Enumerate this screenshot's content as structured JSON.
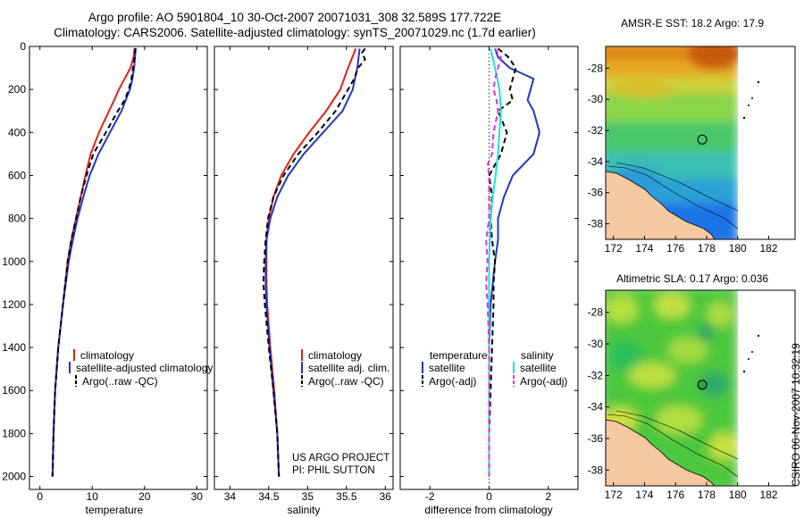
{
  "header": {
    "line1": "Argo profile: AO 5901804_10 30-Oct-2007 20071031_308 32.589S 177.722E",
    "line2": "Climatology: CARS2006. Satellite-adjusted climatology: synTS_20071029.nc (1.7d earlier)"
  },
  "colors": {
    "climatology": "#e0201a",
    "satellite": "#1f36c8",
    "argo": "#000000",
    "sal_satellite": "#22dede",
    "sal_argo": "#e030d0"
  },
  "depth_axis": {
    "ticks": [
      "0",
      "200",
      "400",
      "600",
      "800",
      "1000",
      "1200",
      "1400",
      "1600",
      "1800",
      "2000"
    ]
  },
  "chart_data": [
    {
      "type": "line",
      "xlabel": "temperature",
      "xlim": [
        -2,
        32
      ],
      "ylim": [
        2060,
        0
      ],
      "xticks": [
        "0",
        "10",
        "20",
        "30"
      ],
      "legend": {
        "placement": "lower-center",
        "entries": [
          "climatology",
          "satellite-adjusted climatology",
          "Argo(..raw -QC)"
        ]
      },
      "series": [
        {
          "name": "climatology",
          "color": "#e0201a",
          "dash": "",
          "depth": [
            8,
            50,
            100,
            150,
            200,
            250,
            300,
            400,
            500,
            600,
            700,
            800,
            900,
            1000,
            1200,
            1400,
            1600,
            1800,
            2000
          ],
          "values": [
            18.1,
            17.9,
            17.3,
            16.2,
            15.1,
            14.2,
            13.2,
            11.3,
            9.7,
            8.7,
            7.8,
            6.9,
            6.0,
            5.3,
            4.4,
            3.5,
            2.9,
            2.6,
            2.4
          ]
        },
        {
          "name": "satellite-adjusted climatology",
          "color": "#1f36c8",
          "dash": "",
          "depth": [
            8,
            50,
            100,
            150,
            200,
            250,
            300,
            400,
            500,
            600,
            700,
            800,
            900,
            1000,
            1200,
            1400,
            1600,
            1800,
            2000
          ],
          "values": [
            18.3,
            18.2,
            18.0,
            17.7,
            17.2,
            16.4,
            15.6,
            13.4,
            11.2,
            9.5,
            8.3,
            7.2,
            6.3,
            5.5,
            4.4,
            3.5,
            2.9,
            2.6,
            2.4
          ]
        },
        {
          "name": "Argo(..raw -QC)",
          "color": "#000000",
          "dash": "6,4",
          "depth": [
            8,
            50,
            100,
            150,
            200,
            250,
            300,
            400,
            500,
            600,
            700,
            800,
            900,
            1000,
            1200,
            1400,
            1600,
            1800,
            2000
          ],
          "values": [
            18.3,
            18.1,
            17.8,
            17.5,
            17.0,
            16.2,
            14.9,
            12.6,
            10.2,
            8.9,
            7.8,
            6.9,
            6.0,
            5.3,
            4.4,
            3.5,
            2.9,
            2.6,
            2.4
          ]
        }
      ]
    },
    {
      "type": "line",
      "xlabel": "salinity",
      "xlim": [
        33.8,
        36.1
      ],
      "ylim": [
        2060,
        0
      ],
      "xticks": [
        "34",
        "34.5",
        "35",
        "35.5",
        "36"
      ],
      "legend": {
        "placement": "lower-center",
        "entries": [
          "climatology",
          "satellite adj. clim.",
          "Argo(..raw -QC)"
        ]
      },
      "annotation": [
        "US ARGO PROJECT",
        "PI: PHIL SUTTON"
      ],
      "series": [
        {
          "name": "climatology",
          "color": "#e0201a",
          "dash": "",
          "depth": [
            10,
            100,
            200,
            300,
            400,
            500,
            600,
            700,
            800,
            900,
            1000,
            1100,
            1200,
            1400,
            1600,
            1800,
            2000
          ],
          "values": [
            35.62,
            35.52,
            35.42,
            35.24,
            35.02,
            34.82,
            34.66,
            34.56,
            34.5,
            34.47,
            34.47,
            34.47,
            34.48,
            34.52,
            34.57,
            34.61,
            34.63
          ]
        },
        {
          "name": "satellite adj. clim.",
          "color": "#1f36c8",
          "dash": "",
          "depth": [
            10,
            100,
            200,
            300,
            400,
            500,
            600,
            700,
            800,
            900,
            1000,
            1100,
            1200,
            1400,
            1600,
            1800,
            2000
          ],
          "values": [
            35.67,
            35.64,
            35.58,
            35.45,
            35.2,
            34.95,
            34.75,
            34.61,
            34.52,
            34.47,
            34.46,
            34.46,
            34.47,
            34.51,
            34.56,
            34.61,
            34.63
          ]
        },
        {
          "name": "Argo(..raw -QC)",
          "color": "#000000",
          "dash": "6,4",
          "depth": [
            10,
            30,
            60,
            100,
            150,
            200,
            300,
            400,
            500,
            600,
            700,
            800,
            900,
            1000,
            1100,
            1200,
            1400,
            1600,
            1800,
            2000
          ],
          "values": [
            35.74,
            35.7,
            35.74,
            35.65,
            35.6,
            35.52,
            35.36,
            35.13,
            34.88,
            34.69,
            34.56,
            34.49,
            34.46,
            34.44,
            34.43,
            34.45,
            34.5,
            34.56,
            34.61,
            34.63
          ]
        }
      ]
    },
    {
      "type": "line",
      "xlabel": "difference from climatology",
      "xlim": [
        -3,
        3
      ],
      "ylim": [
        2060,
        0
      ],
      "xticks": [
        "-2",
        "0",
        "2"
      ],
      "legend": {
        "placement": "lower-center",
        "temperature_title": "temperature",
        "salinity_title": "salinity",
        "entries": [
          "satellite",
          "Argo(-adj)",
          "satellite",
          "Argo(-adj)"
        ]
      },
      "series": [
        {
          "name": "temperature satellite",
          "color": "#1f36c8",
          "dash": "",
          "depth": [
            10,
            50,
            100,
            150,
            200,
            250,
            300,
            400,
            500,
            600,
            700,
            800,
            900,
            1000,
            1200,
            1400,
            1600,
            1800,
            2000
          ],
          "values": [
            0.2,
            0.3,
            0.7,
            1.5,
            1.4,
            1.3,
            1.5,
            1.7,
            1.5,
            0.8,
            0.5,
            0.3,
            0.3,
            0.2,
            0.05,
            0.0,
            0.0,
            0.0,
            0.0
          ]
        },
        {
          "name": "temperature Argo(-adj)",
          "color": "#000000",
          "dash": "6,4",
          "depth": [
            10,
            50,
            100,
            150,
            200,
            250,
            300,
            400,
            500,
            600,
            700,
            800,
            900,
            1000,
            1100,
            1200,
            1400,
            1600,
            1800,
            2000
          ],
          "values": [
            0.3,
            0.65,
            0.9,
            0.8,
            0.7,
            0.8,
            0.3,
            0.6,
            0.4,
            0.0,
            0.1,
            0.05,
            0.1,
            0.2,
            0.15,
            0.15,
            0.1,
            0.05,
            0.0,
            0.0
          ]
        },
        {
          "name": "salinity satellite",
          "color": "#22dede",
          "dash": "",
          "depth": [
            10,
            100,
            200,
            300,
            400,
            500,
            600,
            700,
            800,
            1000,
            1200,
            1400,
            1600,
            1800,
            2000
          ],
          "values": [
            0.05,
            0.2,
            0.35,
            0.4,
            0.35,
            0.3,
            0.22,
            0.12,
            0.05,
            0.0,
            0.0,
            0.0,
            0.0,
            0.0,
            0.0
          ]
        },
        {
          "name": "salinity Argo(-adj)",
          "color": "#e030d0",
          "dash": "6,4",
          "depth": [
            10,
            50,
            100,
            150,
            200,
            250,
            300,
            400,
            500,
            550,
            600,
            700,
            800,
            900,
            1000,
            1100,
            1200,
            1400,
            1600,
            1800,
            2000
          ],
          "values": [
            0.2,
            0.4,
            0.3,
            0.2,
            0.15,
            0.25,
            0.3,
            0.15,
            0.1,
            -0.05,
            0.0,
            0.0,
            0.0,
            -0.1,
            -0.05,
            -0.1,
            -0.05,
            0.0,
            0.0,
            0.0,
            0.0
          ]
        }
      ]
    }
  ],
  "maps": [
    {
      "title": "AMSR-E SST: 18.2 Argo: 17.9",
      "xticks": [
        "172",
        "174",
        "176",
        "178",
        "180",
        "182"
      ],
      "yticks": [
        "-28",
        "-30",
        "-32",
        "-34",
        "-36",
        "-38"
      ],
      "lon": [
        171.5,
        183.7
      ],
      "lat": [
        -39.0,
        -26.6
      ],
      "profile_lon": 177.72,
      "profile_lat": -32.59
    },
    {
      "title": "Altimetric SLA: 0.17 Argo: 0.036",
      "xticks": [
        "172",
        "174",
        "176",
        "178",
        "180",
        "182"
      ],
      "yticks": [
        "-28",
        "-30",
        "-32",
        "-34",
        "-36",
        "-38"
      ],
      "lon": [
        171.5,
        183.7
      ],
      "lat": [
        -39.0,
        -26.6
      ],
      "profile_lon": 177.72,
      "profile_lat": -32.59
    }
  ],
  "footer": {
    "credit": "CSIRO 06-Nov-2007 10:32:19"
  }
}
